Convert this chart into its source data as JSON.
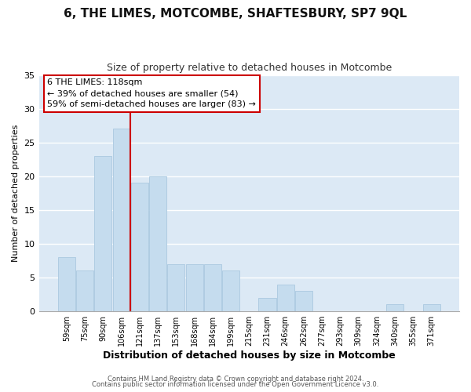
{
  "title": "6, THE LIMES, MOTCOMBE, SHAFTESBURY, SP7 9QL",
  "subtitle": "Size of property relative to detached houses in Motcombe",
  "xlabel": "Distribution of detached houses by size in Motcombe",
  "ylabel": "Number of detached properties",
  "bar_color": "#c5dcee",
  "bar_edge_color": "#c5dcee",
  "bin_labels": [
    "59sqm",
    "75sqm",
    "90sqm",
    "106sqm",
    "121sqm",
    "137sqm",
    "153sqm",
    "168sqm",
    "184sqm",
    "199sqm",
    "215sqm",
    "231sqm",
    "246sqm",
    "262sqm",
    "277sqm",
    "293sqm",
    "309sqm",
    "324sqm",
    "340sqm",
    "355sqm",
    "371sqm"
  ],
  "bar_heights": [
    8,
    6,
    23,
    27,
    19,
    20,
    7,
    7,
    7,
    6,
    0,
    2,
    4,
    3,
    0,
    0,
    0,
    0,
    1,
    0,
    1
  ],
  "ylim": [
    0,
    35
  ],
  "yticks": [
    0,
    5,
    10,
    15,
    20,
    25,
    30,
    35
  ],
  "vline_x_index": 3.5,
  "vline_color": "#cc0000",
  "annotation_title": "6 THE LIMES: 118sqm",
  "annotation_line1": "← 39% of detached houses are smaller (54)",
  "annotation_line2": "59% of semi-detached houses are larger (83) →",
  "annotation_box_color": "#ffffff",
  "annotation_box_edge": "#cc0000",
  "footer1": "Contains HM Land Registry data © Crown copyright and database right 2024.",
  "footer2": "Contains public sector information licensed under the Open Government Licence v3.0.",
  "background_color": "#ffffff",
  "plot_background": "#dce9f5",
  "grid_color": "#ffffff"
}
